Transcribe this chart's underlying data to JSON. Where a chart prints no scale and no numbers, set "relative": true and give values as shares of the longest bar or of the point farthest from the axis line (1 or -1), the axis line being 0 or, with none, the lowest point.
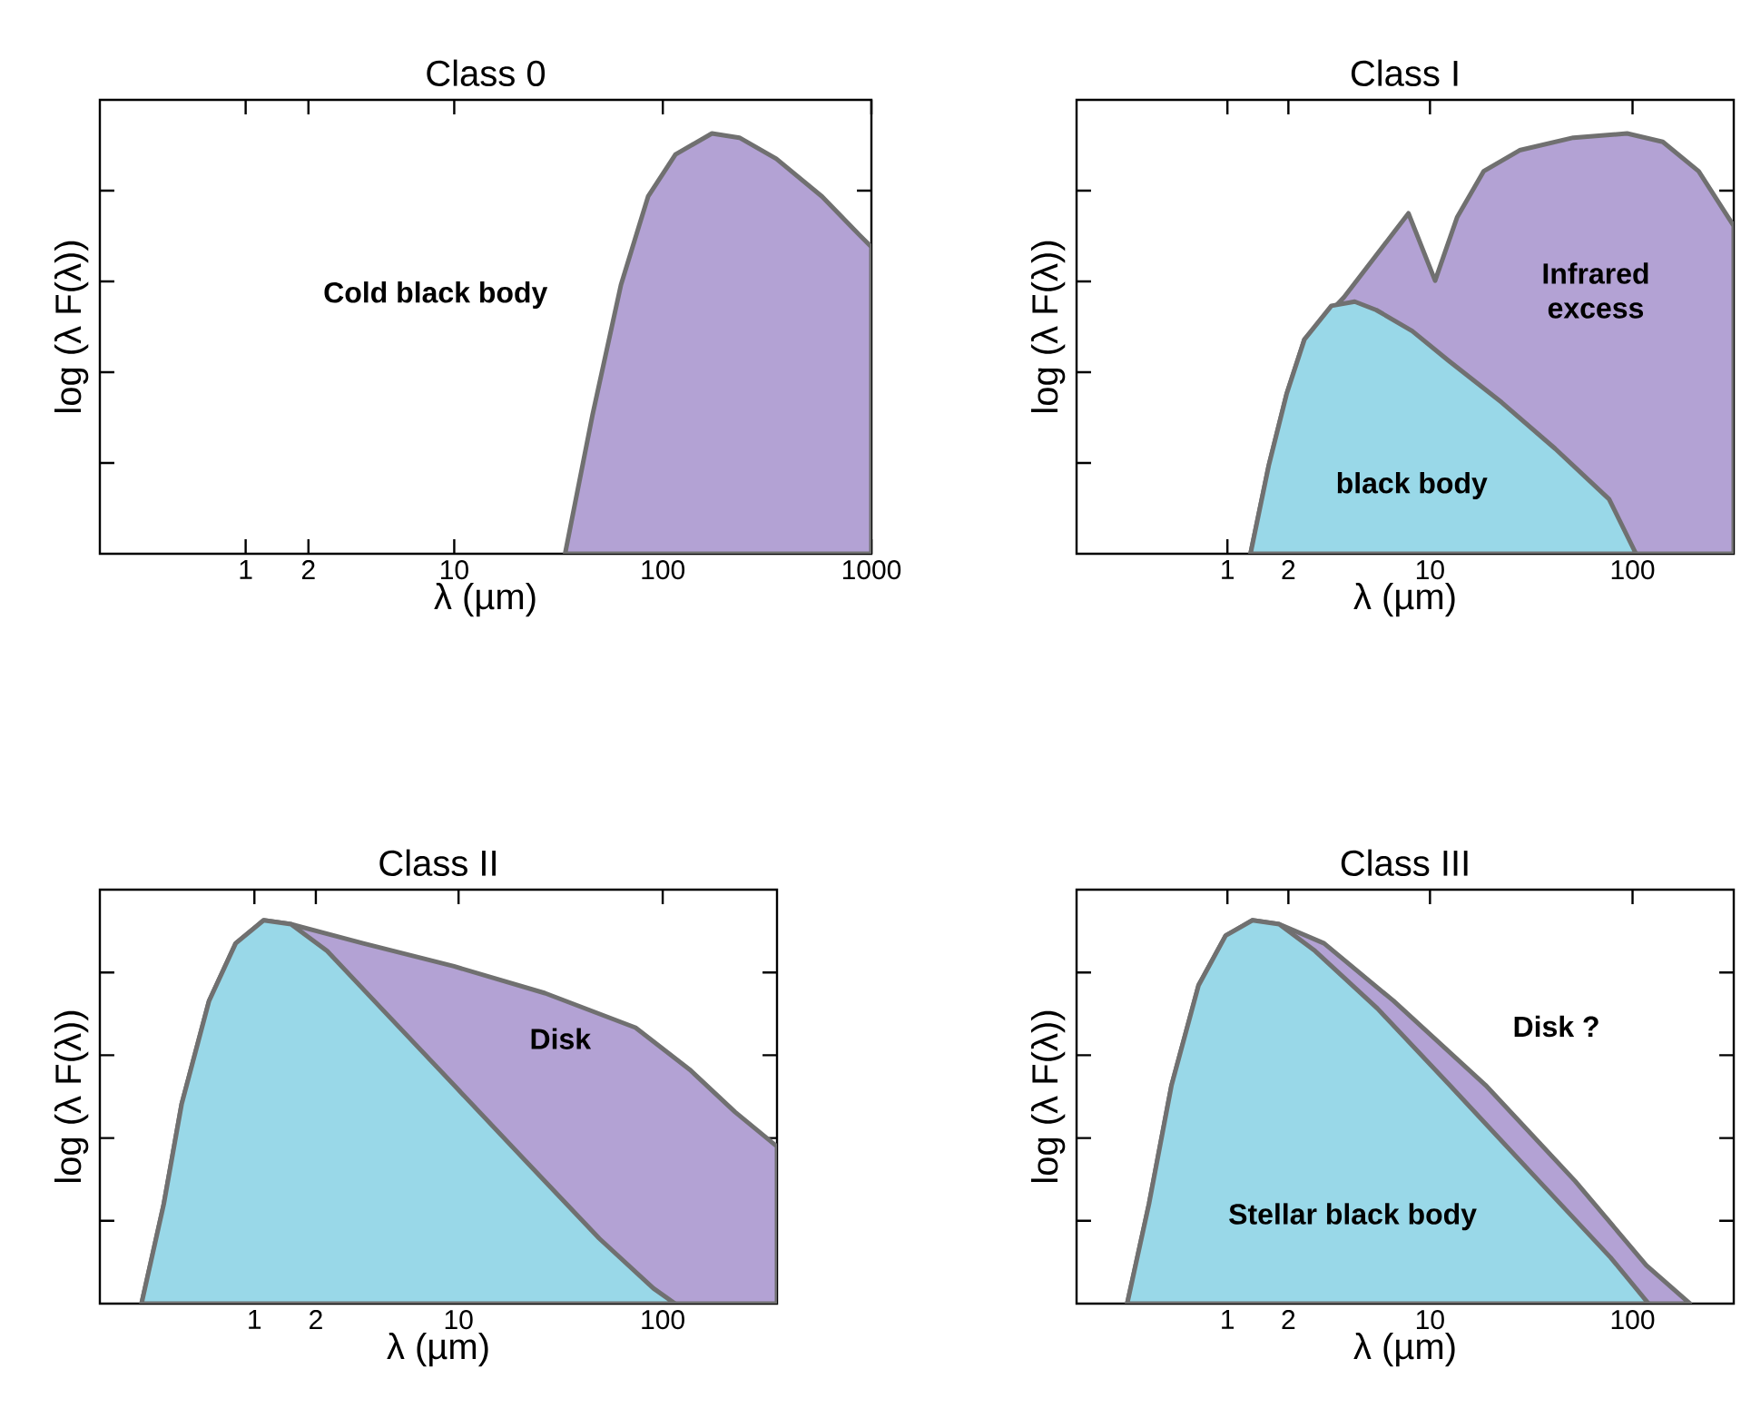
{
  "chart_data": [
    {
      "type": "area",
      "title": "Class 0",
      "xlabel": "λ (µm)",
      "ylabel": "log (λ F(λ))",
      "relative": true,
      "log": "x",
      "xlim": [
        0.2,
        1000
      ],
      "xticks": [
        1,
        2,
        10,
        100,
        1000
      ],
      "series": [
        {
          "name": "Cold black body",
          "color": "#b3a2d4",
          "x": [
            34,
            46,
            63,
            85,
            115,
            172,
            233,
            350,
            580,
            870,
            1000
          ],
          "values": [
            0,
            0.33,
            0.64,
            0.85,
            0.95,
            1.0,
            0.99,
            0.94,
            0.85,
            0.76,
            0.73
          ]
        }
      ],
      "legend": false
    },
    {
      "type": "area",
      "title": "Class I",
      "xlabel": "λ (µm)",
      "ylabel": "log (λ F(λ))",
      "relative": true,
      "log": "x",
      "xlim": [
        0.18,
        316
      ],
      "xticks": [
        1,
        2,
        10,
        100
      ],
      "series": [
        {
          "name": "Infrared excess",
          "color": "#b3a2d4",
          "x": [
            1.3,
            1.6,
            1.96,
            2.4,
            3.76,
            7.83,
            10.6,
            13.6,
            18.4,
            27.7,
            51,
            94,
            141,
            212,
            316
          ],
          "values": [
            0,
            0.21,
            0.38,
            0.51,
            0.61,
            0.81,
            0.65,
            0.8,
            0.91,
            0.96,
            0.99,
            1.0,
            0.98,
            0.91,
            0.78
          ]
        },
        {
          "name": "black body",
          "color": "#99d8e8",
          "x": [
            1.3,
            1.6,
            1.96,
            2.4,
            3.26,
            4.25,
            5.43,
            8.17,
            12.3,
            22.6,
            41.5,
            76.6,
            104
          ],
          "values": [
            0,
            0.21,
            0.38,
            0.51,
            0.59,
            0.6,
            0.58,
            0.53,
            0.46,
            0.36,
            0.25,
            0.13,
            0
          ]
        }
      ],
      "legend": false
    },
    {
      "type": "area",
      "title": "Class II",
      "xlabel": "λ (µm)",
      "ylabel": "log (λ F(λ))",
      "relative": true,
      "log": "x",
      "xlim": [
        0.175,
        363
      ],
      "xticks": [
        1,
        2,
        10,
        100
      ],
      "series": [
        {
          "name": "Disk",
          "color": "#b3a2d4",
          "x": [
            0.28,
            0.36,
            0.44,
            0.6,
            0.81,
            1.11,
            1.51,
            3.41,
            9.5,
            26.5,
            73.6,
            136,
            226,
            363
          ],
          "values": [
            0,
            0.26,
            0.52,
            0.79,
            0.94,
            1.0,
            0.99,
            0.94,
            0.88,
            0.81,
            0.72,
            0.61,
            0.5,
            0.41
          ]
        },
        {
          "color": "#99d8e8",
          "x": [
            0.28,
            0.36,
            0.44,
            0.6,
            0.81,
            1.11,
            1.51,
            2.27,
            4.19,
            9.5,
            21.5,
            48.9,
            90,
            115
          ],
          "values": [
            0,
            0.26,
            0.52,
            0.79,
            0.94,
            1.0,
            0.99,
            0.92,
            0.77,
            0.57,
            0.37,
            0.17,
            0.04,
            0
          ]
        }
      ],
      "legend": false
    },
    {
      "type": "area",
      "title": "Class III",
      "xlabel": "λ (µm)",
      "ylabel": "log (λ F(λ))",
      "relative": true,
      "log": "x",
      "xlim": [
        0.18,
        316
      ],
      "xticks": [
        1,
        2,
        10,
        100
      ],
      "series": [
        {
          "name": "Disk ?",
          "color": "#b3a2d4",
          "x": [
            0.32,
            0.41,
            0.53,
            0.72,
            0.98,
            1.33,
            1.8,
            3.0,
            6.6,
            18.8,
            52,
            117,
            192
          ],
          "values": [
            0,
            0.26,
            0.57,
            0.83,
            0.96,
            1.0,
            0.99,
            0.94,
            0.79,
            0.57,
            0.32,
            0.1,
            0
          ]
        },
        {
          "name": "Stellar black body",
          "color": "#99d8e8",
          "x": [
            0.32,
            0.41,
            0.53,
            0.72,
            0.98,
            1.33,
            1.8,
            2.71,
            5.5,
            12.5,
            34.5,
            78,
            120
          ],
          "values": [
            0,
            0.26,
            0.57,
            0.83,
            0.96,
            1.0,
            0.99,
            0.92,
            0.77,
            0.57,
            0.32,
            0.12,
            0
          ]
        }
      ],
      "legend": false
    }
  ]
}
